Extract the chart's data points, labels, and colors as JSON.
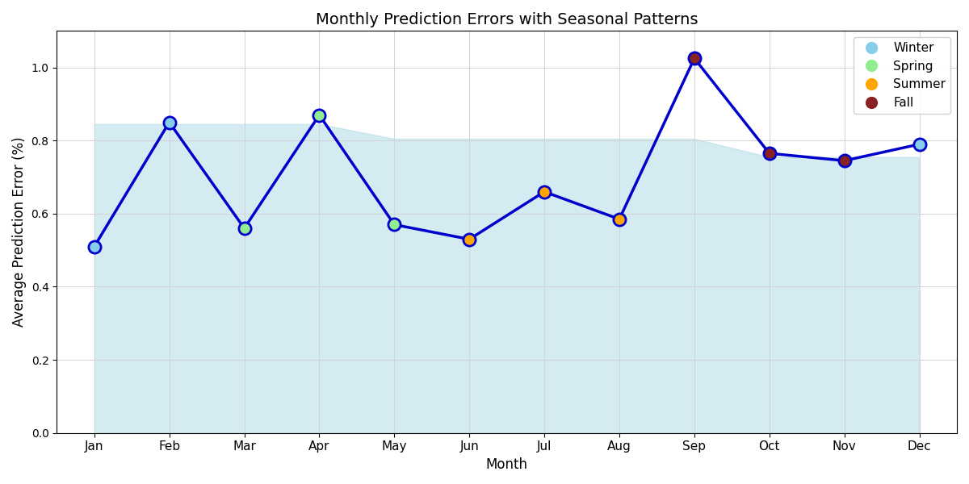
{
  "months": [
    "Jan",
    "Feb",
    "Mar",
    "Apr",
    "May",
    "Jun",
    "Jul",
    "Aug",
    "Sep",
    "Oct",
    "Nov",
    "Dec"
  ],
  "values": [
    0.51,
    0.85,
    0.56,
    0.87,
    0.57,
    0.53,
    0.66,
    0.585,
    1.025,
    0.765,
    0.745,
    0.79
  ],
  "seasons": [
    "Winter",
    "Winter",
    "Spring",
    "Spring",
    "Spring",
    "Summer",
    "Summer",
    "Summer",
    "Fall",
    "Fall",
    "Fall",
    "Winter"
  ],
  "season_colors": {
    "Winter": "#87CEEB",
    "Spring": "#90EE90",
    "Summer": "#FFA500",
    "Fall": "#8B2222"
  },
  "fill_upper": [
    0.845,
    0.845,
    0.845,
    0.845,
    0.805,
    0.805,
    0.805,
    0.805,
    0.805,
    0.755,
    0.755,
    0.755
  ],
  "fill_lower": [
    0.0,
    0.0,
    0.0,
    0.0,
    0.0,
    0.0,
    0.0,
    0.0,
    0.0,
    0.0,
    0.0,
    0.0
  ],
  "title": "Monthly Prediction Errors with Seasonal Patterns",
  "xlabel": "Month",
  "ylabel": "Average Prediction Error (%)",
  "line_color": "#0000CC",
  "fill_color": "#ADD8E6",
  "fill_alpha": 0.5,
  "ylim": [
    0.0,
    1.1
  ],
  "marker_size": 120,
  "line_width": 2.5,
  "legend_marker_size": 12
}
